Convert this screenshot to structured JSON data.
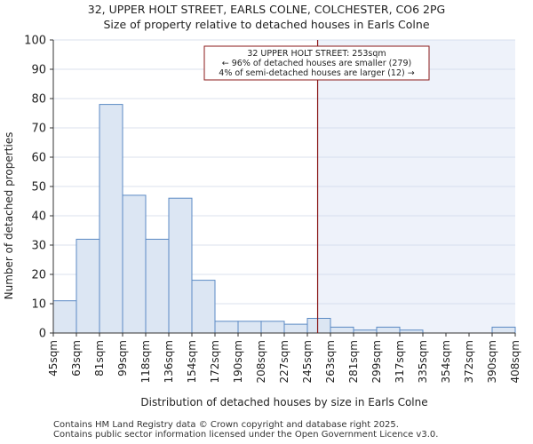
{
  "chart_data": {
    "type": "bar",
    "title": "32, UPPER HOLT STREET, EARLS COLNE, COLCHESTER, CO6 2PG",
    "subtitle": "Size of property relative to detached houses in Earls Colne",
    "xlabel": "Distribution of detached houses by size in Earls Colne",
    "ylabel": "Number of detached properties",
    "ylim": [
      0,
      100
    ],
    "yticks": [
      0,
      10,
      20,
      30,
      40,
      50,
      60,
      70,
      80,
      90,
      100
    ],
    "bin_edges": [
      45,
      63,
      81,
      99,
      118,
      136,
      154,
      172,
      190,
      208,
      227,
      245,
      263,
      281,
      299,
      317,
      335,
      354,
      372,
      390,
      408
    ],
    "x_tick_labels": [
      "45sqm",
      "63sqm",
      "81sqm",
      "99sqm",
      "118sqm",
      "136sqm",
      "154sqm",
      "172sqm",
      "190sqm",
      "208sqm",
      "227sqm",
      "245sqm",
      "263sqm",
      "281sqm",
      "299sqm",
      "317sqm",
      "335sqm",
      "354sqm",
      "372sqm",
      "390sqm",
      "408sqm"
    ],
    "values": [
      11,
      32,
      78,
      47,
      32,
      46,
      18,
      4,
      4,
      4,
      3,
      5,
      2,
      1,
      2,
      1,
      0,
      0,
      0,
      2
    ],
    "marker": {
      "value": 253,
      "label": "32 UPPER HOLT STREET: 253sqm",
      "color": "#8b1a1a"
    },
    "annotation_lines": [
      "32 UPPER HOLT STREET: 253sqm",
      "← 96% of detached houses are smaller (279)",
      "4% of semi-detached houses are larger (12) →"
    ],
    "colors": {
      "bar_fill": "#dce6f3",
      "bar_edge": "#5b8ac4",
      "highlight": "#eef2fa",
      "marker": "#8b1a1a"
    }
  },
  "footer": {
    "line1": "Contains HM Land Registry data © Crown copyright and database right 2025.",
    "line2": "Contains public sector information licensed under the Open Government Licence v3.0."
  }
}
